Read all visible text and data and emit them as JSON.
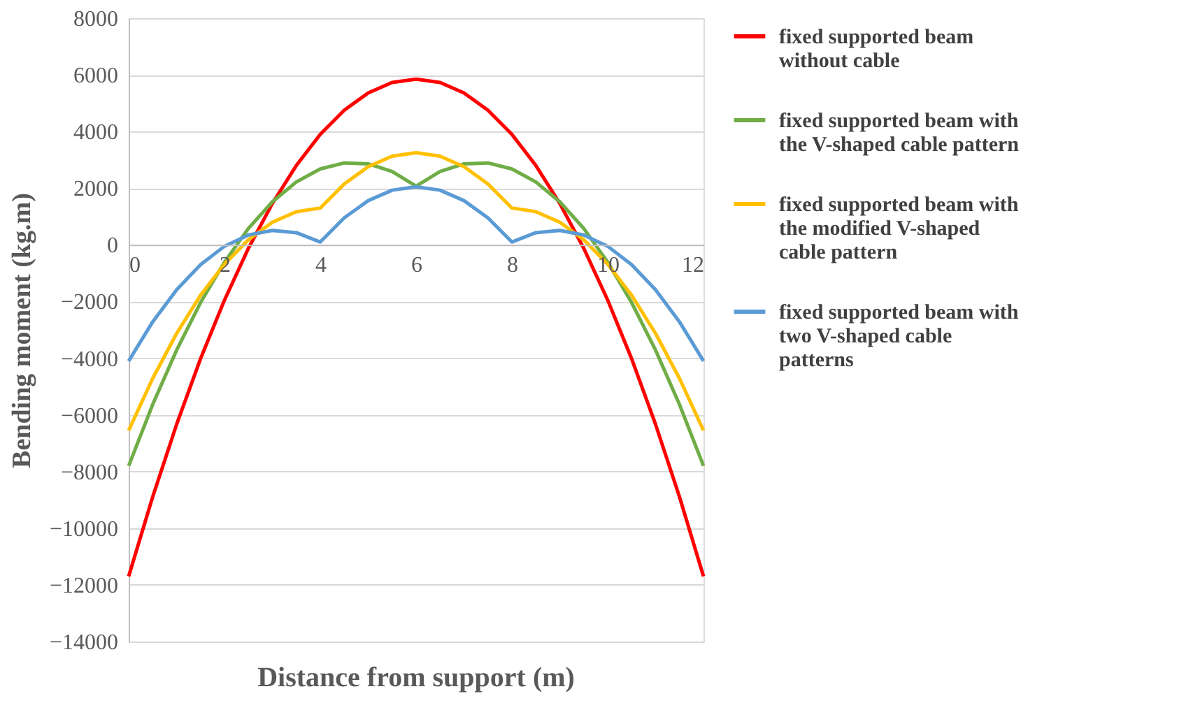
{
  "chart_data": {
    "type": "line",
    "xlabel": "Distance from support (m)",
    "ylabel": "Bending moment (kg.m)",
    "x": [
      0,
      0.5,
      1,
      1.5,
      2,
      2.5,
      3,
      3.5,
      4,
      4.5,
      5,
      5.5,
      6,
      6.5,
      7,
      7.5,
      8,
      8.5,
      9,
      9.5,
      10,
      10.5,
      11,
      11.5,
      12
    ],
    "series": [
      {
        "name": "fixed supported beam without cable",
        "color": "#ff0000",
        "values": [
          -11700,
          -8900,
          -6340,
          -4020,
          -1950,
          -120,
          1460,
          2800,
          3900,
          4750,
          5360,
          5730,
          5850,
          5730,
          5360,
          4750,
          3900,
          2800,
          1460,
          -120,
          -1950,
          -4020,
          -6340,
          -8900,
          -11700
        ]
      },
      {
        "name": "fixed supported beam with the V-shaped cable pattern",
        "color": "#70ad47",
        "values": [
          -7800,
          -5640,
          -3720,
          -2040,
          -610,
          580,
          1520,
          2220,
          2680,
          2890,
          2860,
          2590,
          2070,
          2590,
          2860,
          2890,
          2680,
          2220,
          1520,
          580,
          -610,
          -2040,
          -3720,
          -5640,
          -7800
        ]
      },
      {
        "name": "fixed supported beam with the modified V-shaped cable pattern",
        "color": "#ffc000",
        "values": [
          -6550,
          -4720,
          -3130,
          -1780,
          -680,
          180,
          800,
          1170,
          1300,
          2150,
          2760,
          3130,
          3250,
          3130,
          2760,
          2150,
          1300,
          1170,
          800,
          180,
          -680,
          -1780,
          -3130,
          -4720,
          -6550
        ]
      },
      {
        "name": "fixed supported beam with two V-shaped cable patterns",
        "color": "#5b9bd5",
        "values": [
          -4100,
          -2720,
          -1590,
          -700,
          -50,
          350,
          510,
          430,
          100,
          950,
          1560,
          1930,
          2050,
          1930,
          1560,
          950,
          100,
          430,
          510,
          350,
          -50,
          -700,
          -1590,
          -2720,
          -4100
        ]
      }
    ],
    "xlim": [
      0,
      12
    ],
    "xticks": [
      0,
      2,
      4,
      6,
      8,
      10,
      12
    ],
    "ylim": [
      -14000,
      8000
    ],
    "yticks": [
      -14000,
      -12000,
      -10000,
      -8000,
      -6000,
      -4000,
      -2000,
      0,
      2000,
      4000,
      6000,
      8000
    ],
    "grid": "y",
    "legend": "right",
    "marker": "none",
    "line_style": "solid"
  }
}
